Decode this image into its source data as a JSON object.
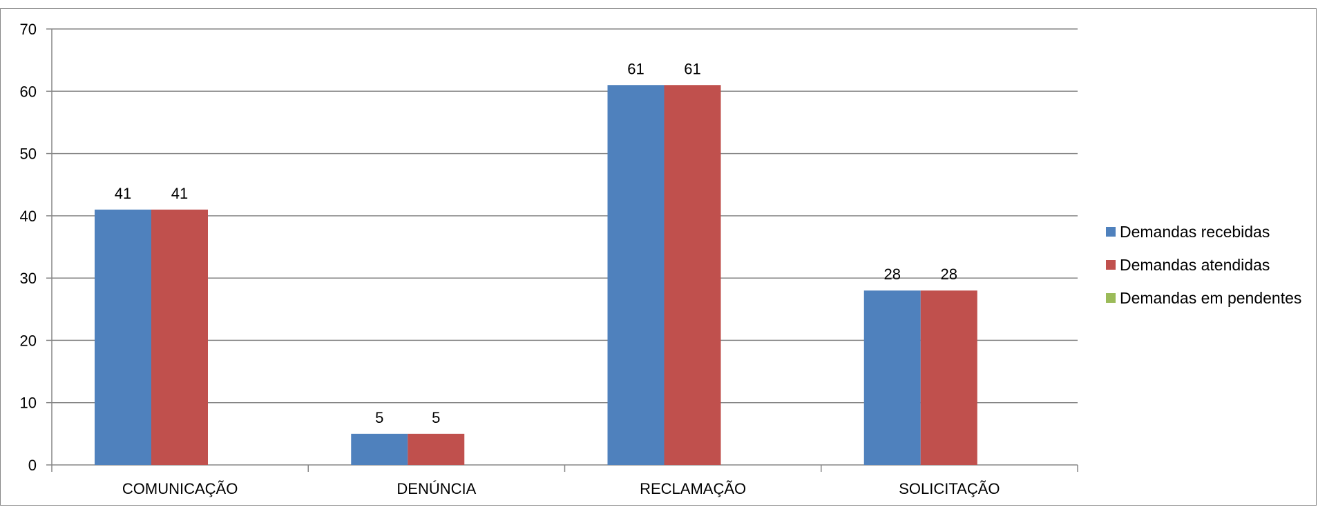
{
  "chart_data": {
    "type": "bar",
    "title": "",
    "xlabel": "",
    "ylabel": "",
    "categories": [
      "COMUNICAÇÃO",
      "DENÚNCIA",
      "RECLAMAÇÃO",
      "SOLICITAÇÃO"
    ],
    "series": [
      {
        "name": "Demandas recebidas",
        "color": "#4F81BD",
        "values": [
          41,
          5,
          61,
          28
        ]
      },
      {
        "name": "Demandas atendidas",
        "color": "#C0504D",
        "values": [
          41,
          5,
          61,
          28
        ]
      },
      {
        "name": "Demandas em pendentes",
        "color": "#9BBB59",
        "values": [
          0,
          0,
          0,
          0
        ]
      }
    ],
    "ylim": [
      0,
      70
    ],
    "yticks": [
      0,
      10,
      20,
      30,
      40,
      50,
      60,
      70
    ],
    "grid": true,
    "legend_position": "right",
    "data_labels_series": [
      "Demandas recebidas",
      "Demandas atendidas"
    ]
  }
}
